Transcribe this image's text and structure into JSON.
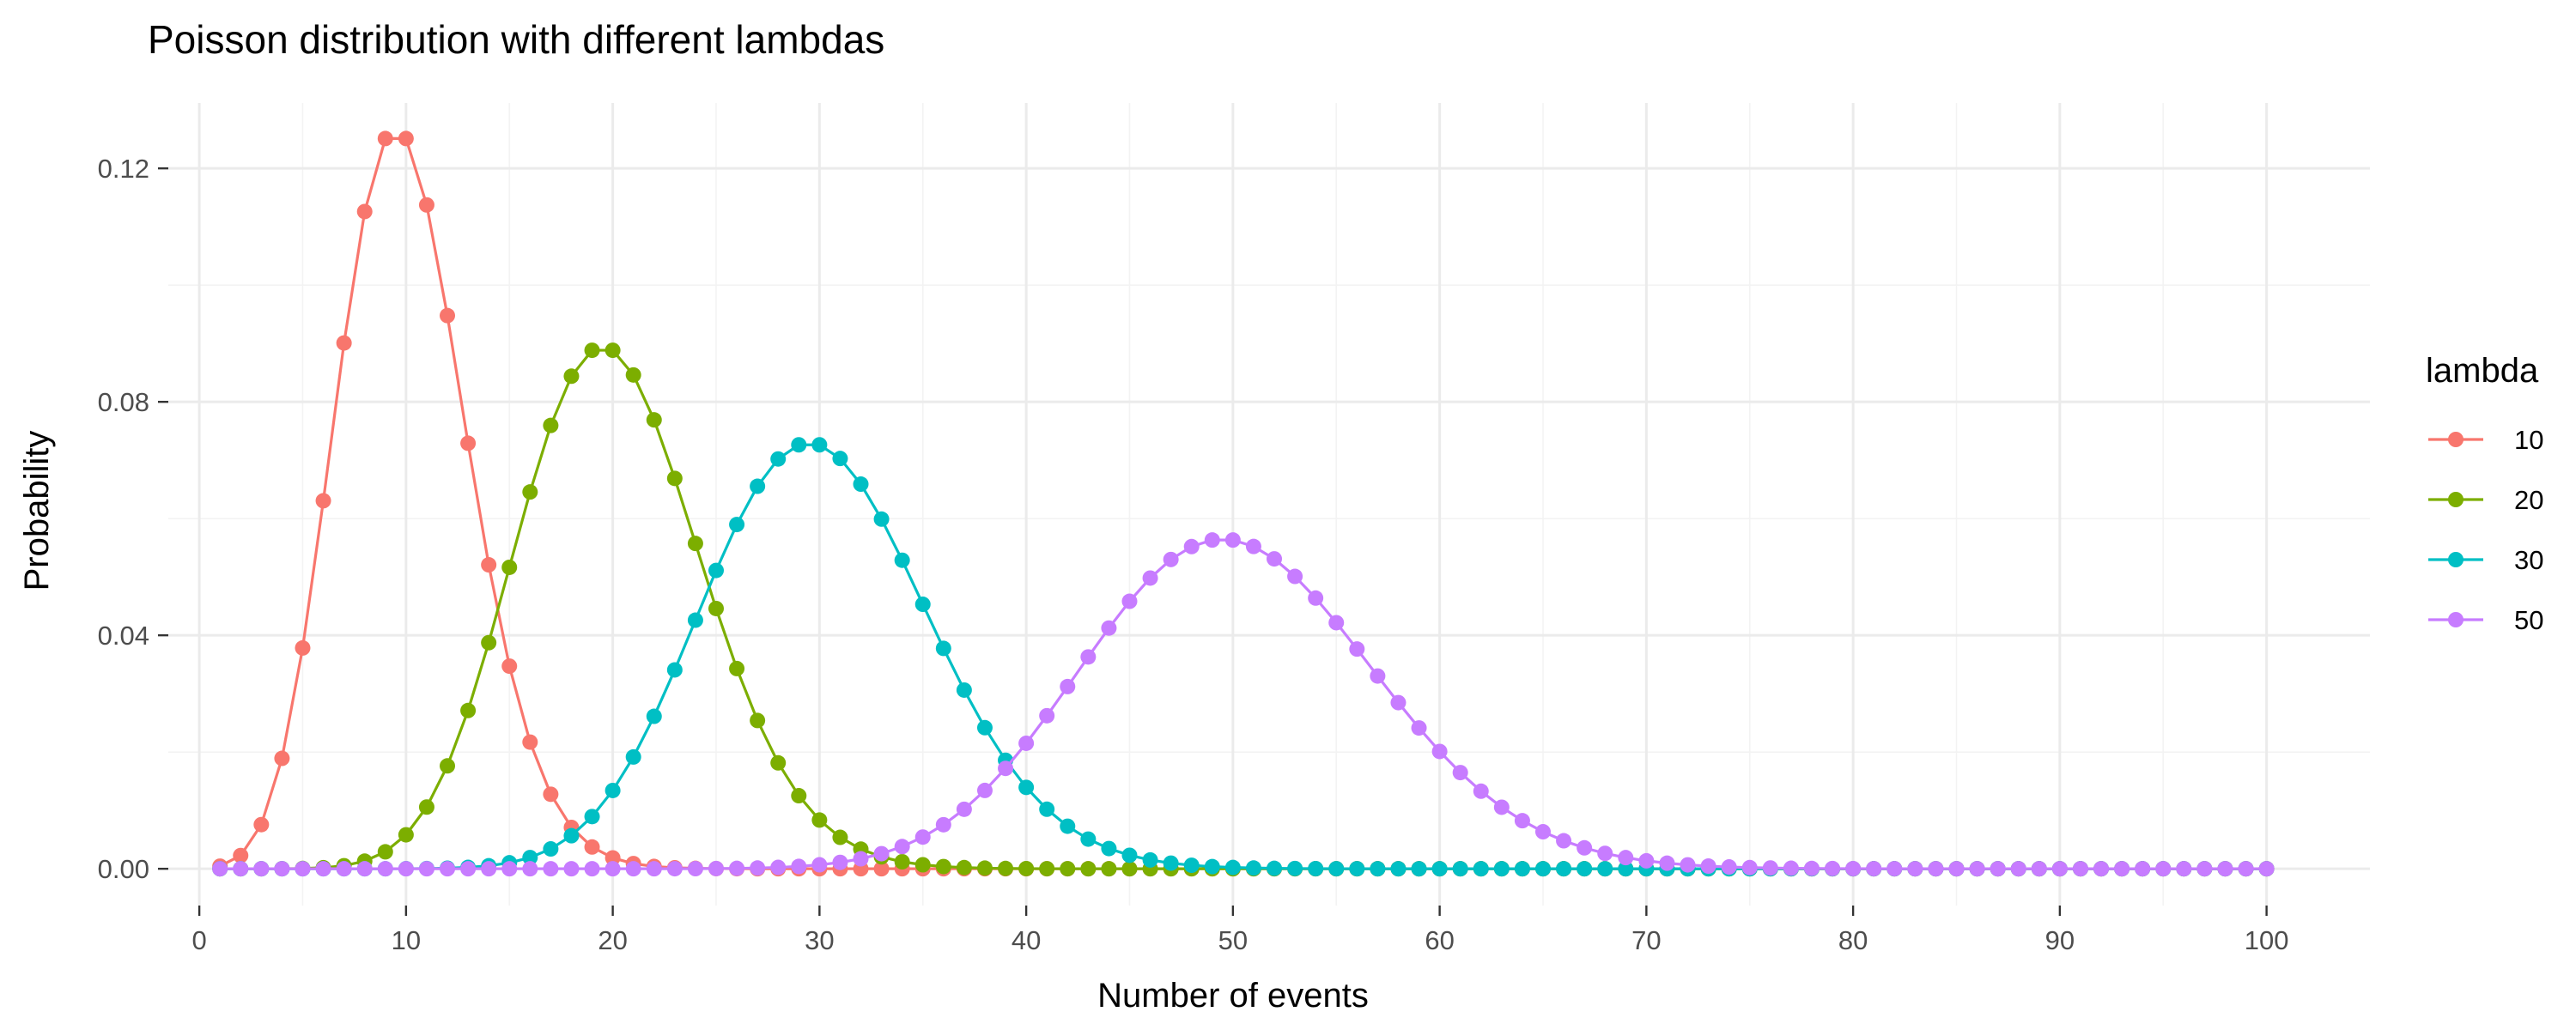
{
  "chart_data": {
    "type": "line",
    "title": "Poisson distribution with different lambdas",
    "xlabel": "Number of events",
    "ylabel": "Probability",
    "x_range": [
      1,
      100
    ],
    "xlim": [
      -1.5,
      105
    ],
    "ylim": [
      -0.0063,
      0.1312
    ],
    "x_ticks": [
      0,
      10,
      20,
      30,
      40,
      50,
      60,
      70,
      80,
      90,
      100
    ],
    "y_ticks": [
      0,
      0.04,
      0.08,
      0.12
    ],
    "x_tick_labels": [
      "0",
      "10",
      "20",
      "30",
      "40",
      "50",
      "60",
      "70",
      "80",
      "90",
      "100"
    ],
    "y_tick_labels": [
      "0.00",
      "0.04",
      "0.08",
      "0.12"
    ],
    "grid": true,
    "markers": "points",
    "legend": {
      "title": "lambda",
      "placement": "right"
    },
    "series": [
      {
        "name": "10",
        "lambda": 10,
        "color": "#F8766D"
      },
      {
        "name": "20",
        "lambda": 20,
        "color": "#7CAE00"
      },
      {
        "name": "30",
        "lambda": 30,
        "color": "#00BFC4"
      },
      {
        "name": "50",
        "lambda": 50,
        "color": "#C77CFF"
      }
    ]
  }
}
